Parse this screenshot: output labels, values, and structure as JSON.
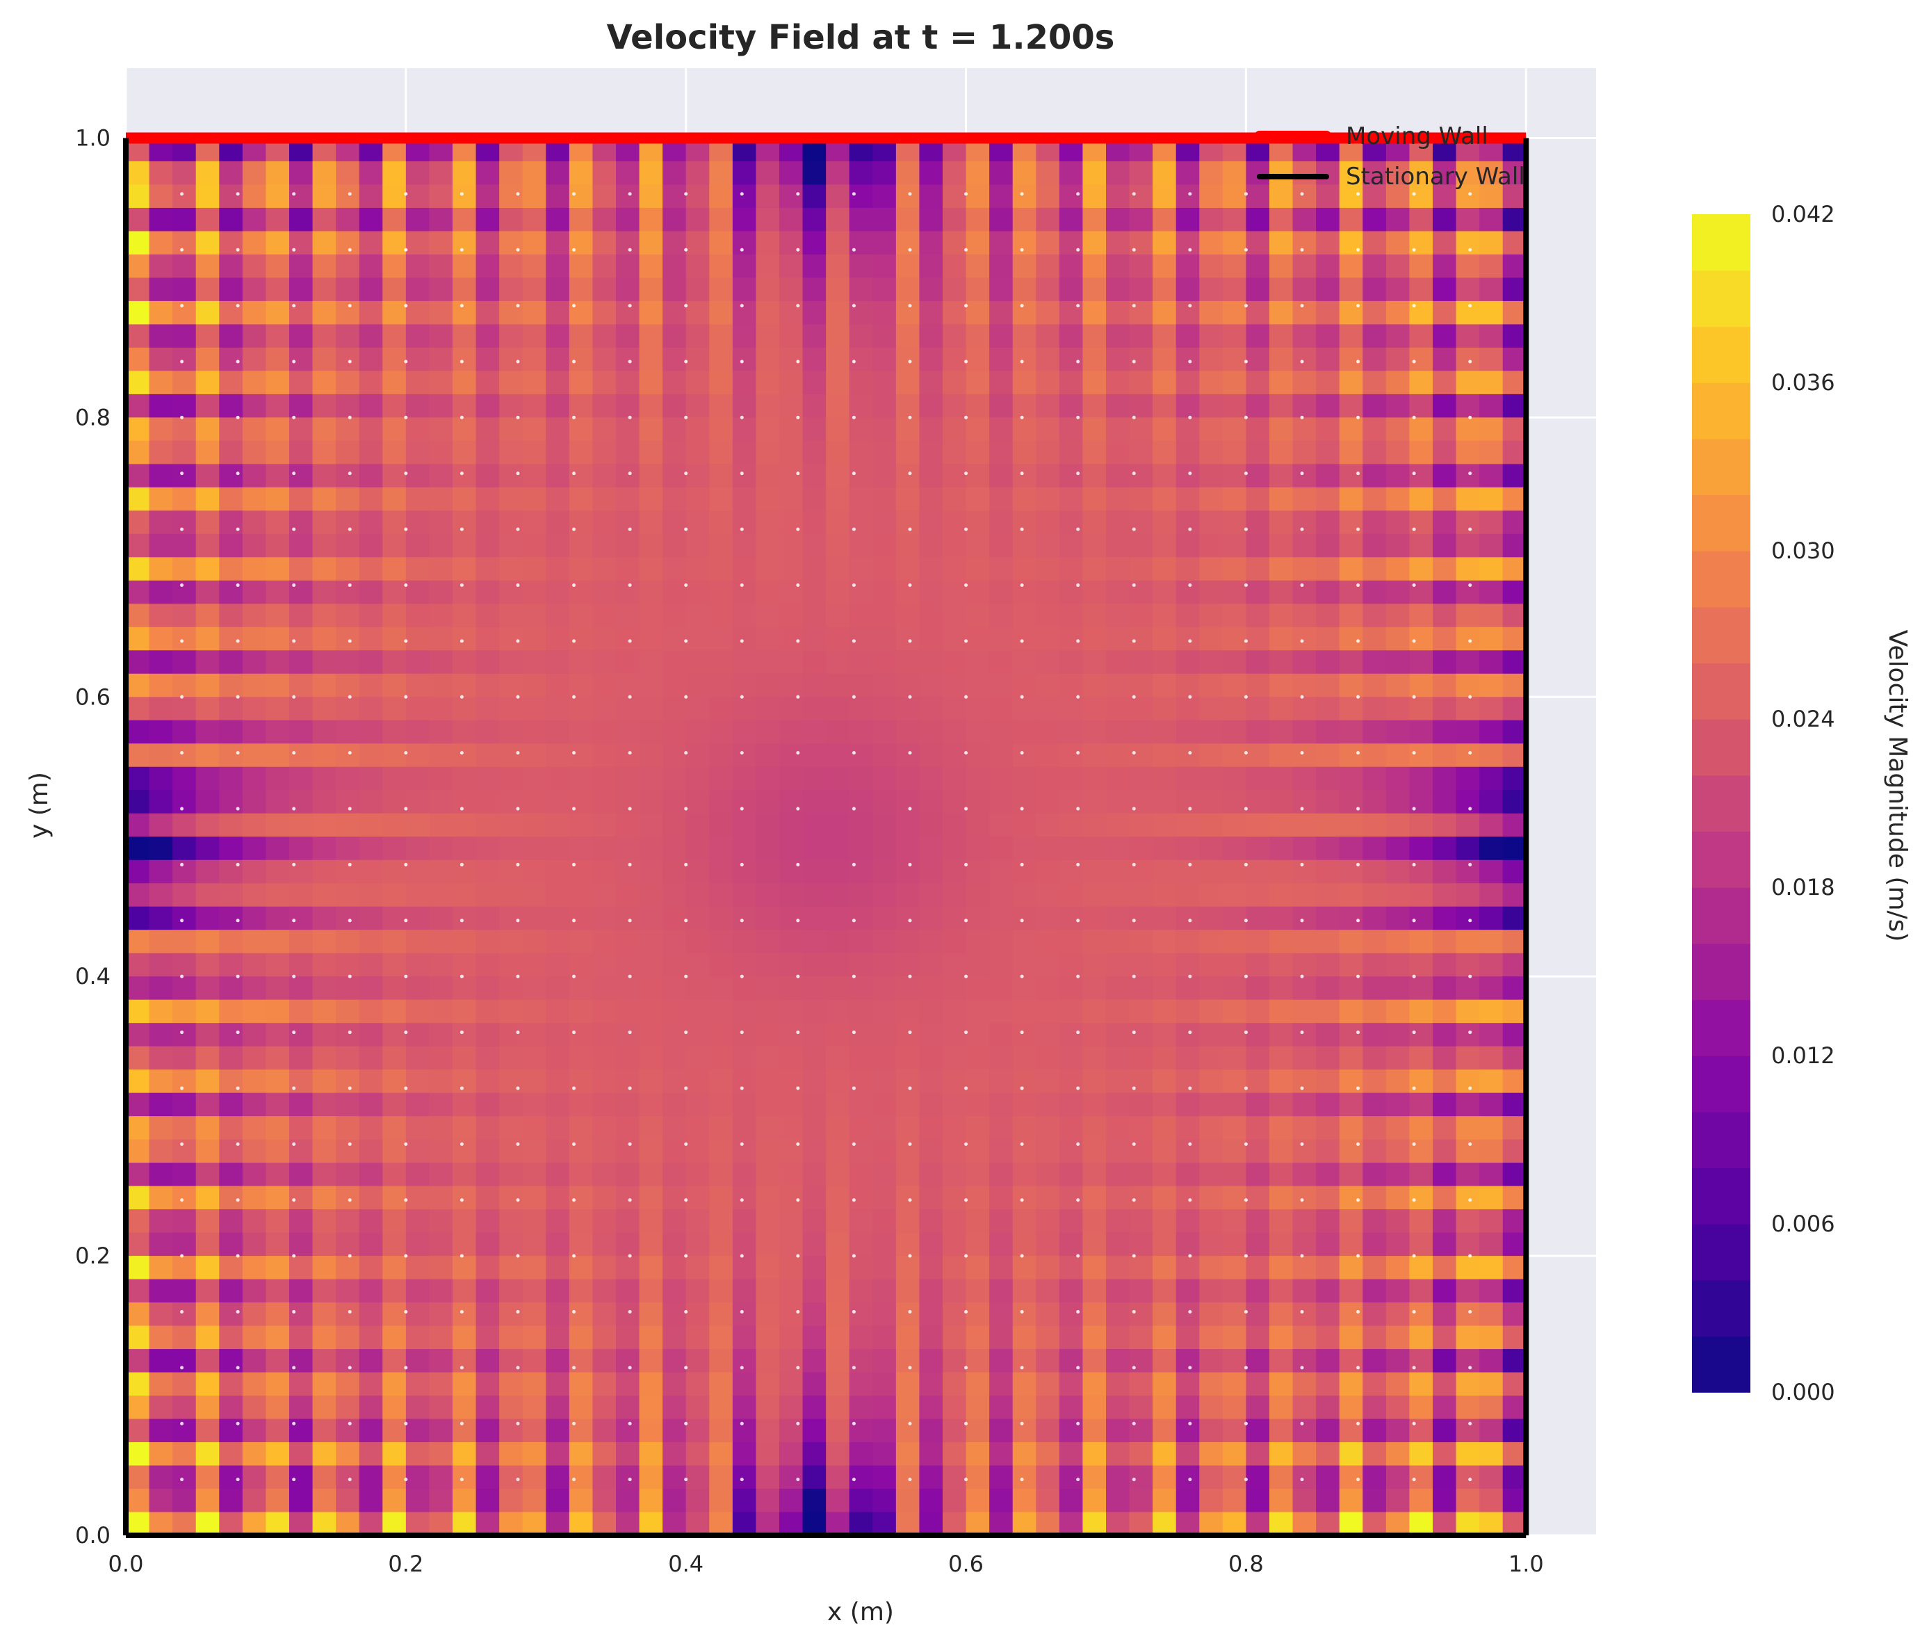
{
  "chart_data": {
    "type": "heatmap",
    "title": "Velocity Field at t = 1.200s",
    "xlabel": "x (m)",
    "ylabel": "y (m)",
    "xlim": [
      0.0,
      1.05
    ],
    "ylim": [
      0.0,
      1.05
    ],
    "xticks": [
      0.0,
      0.2,
      0.4,
      0.6,
      0.8,
      1.0
    ],
    "yticks": [
      0.0,
      0.2,
      0.4,
      0.6,
      0.8,
      1.0
    ],
    "xtick_labels": [
      "0.0",
      "0.2",
      "0.4",
      "0.6",
      "0.8",
      "1.0"
    ],
    "ytick_labels": [
      "0.0",
      "0.2",
      "0.4",
      "0.6",
      "0.8",
      "1.0"
    ],
    "grid": true,
    "colormap": "plasma",
    "domain": {
      "x": [
        0.0,
        1.0
      ],
      "y": [
        0.0,
        1.0
      ]
    },
    "field_description": "Velocity magnitude on a 50x50 grid with oscillatory pattern; central plateau around 0.022-0.026 m/s, near-zero along the vertical mid-line at top and bottom walls and horizontal mid-line at left and right walls, peaks near 0.036-0.040 m/s in bands near the walls",
    "colorbar": {
      "label": "Velocity Magnitude (m/s)",
      "min": 0.0,
      "max": 0.042,
      "ticks": [
        0.0,
        0.006,
        0.012,
        0.018,
        0.024,
        0.03,
        0.036,
        0.042
      ],
      "tick_labels": [
        "0.000",
        "0.006",
        "0.012",
        "0.018",
        "0.024",
        "0.030",
        "0.036",
        "0.042"
      ],
      "levels": 21
    },
    "walls": [
      {
        "name": "Moving Wall",
        "color": "#ff0000",
        "segment": [
          [
            0.0,
            1.0
          ],
          [
            1.0,
            1.0
          ]
        ]
      },
      {
        "name": "Stationary Wall",
        "color": "#000000",
        "segment": [
          [
            1.0,
            0.0
          ],
          [
            1.0,
            1.0
          ]
        ]
      },
      {
        "name": "Stationary Wall",
        "color": "#000000",
        "segment": [
          [
            0.0,
            0.0
          ],
          [
            1.0,
            0.0
          ]
        ]
      },
      {
        "name": "Stationary Wall",
        "color": "#000000",
        "segment": [
          [
            0.0,
            0.0
          ],
          [
            0.0,
            1.0
          ]
        ]
      }
    ],
    "legend": {
      "placement": "top-right",
      "entries": [
        {
          "label": "Moving Wall",
          "color": "#ff0000"
        },
        {
          "label": "Stationary Wall",
          "color": "#000000"
        }
      ]
    },
    "colors": {
      "axes_background": "#eaeaf2",
      "grid": "#ffffff",
      "text": "#262626"
    }
  }
}
